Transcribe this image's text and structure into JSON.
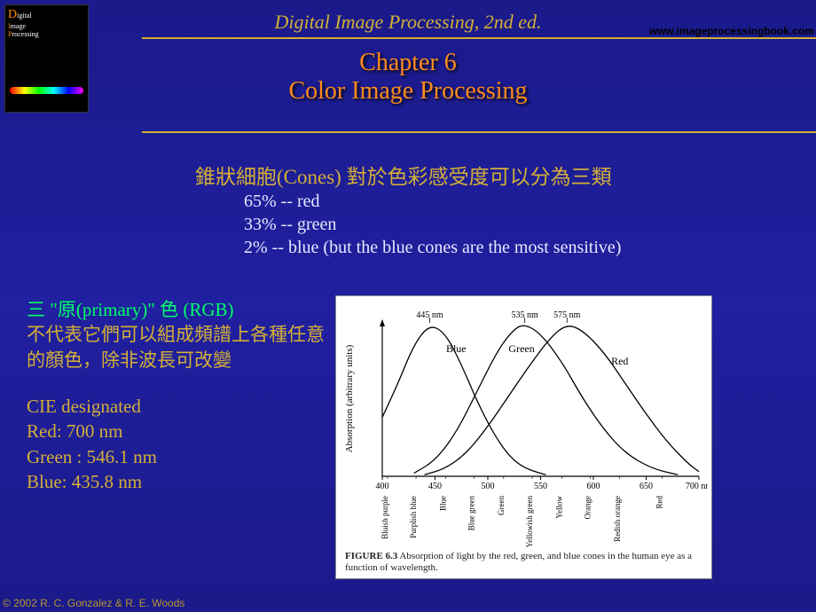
{
  "colors": {
    "gold": "#d4af37",
    "gold_dim": "#b8962e",
    "chapter": "#ff8c1a",
    "green": "#00ff66",
    "white": "#e8e8ff",
    "black": "#000000",
    "figure_bg": "#ffffff"
  },
  "header": {
    "title": "Digital Image Processing, 2nd ed.",
    "url": "www.imageprocessingbook.com"
  },
  "chapter": {
    "line1": "Chapter 6",
    "line2": "Color Image Processing"
  },
  "cones": {
    "heading": "錐狀細胞(Cones) 對於色彩感受度可以分為三類",
    "lines": [
      "65% -- red",
      "33% -- green",
      "2% -- blue (but the blue cones are the most sensitive)"
    ]
  },
  "primary_block": {
    "line1": "三   \"原(primary)\" 色 (RGB)",
    "line2": "不代表它們可以組成頻譜上各種任意的顏色，除非波長可改變"
  },
  "cie_block": {
    "title": "CIE designated",
    "red": "Red: 700 nm",
    "green": "Green : 546.1 nm",
    "blue": "Blue: 435.8 nm"
  },
  "figure": {
    "type": "line",
    "xlim": [
      400,
      700
    ],
    "xtick_step": 50,
    "xtick_labels_numeric": [
      "400",
      "450",
      "500",
      "550",
      "600",
      "650",
      "700 nm"
    ],
    "xtick_labels_rotated": [
      "Bluish purple",
      "Purplish blue",
      "Blue",
      "Blue green",
      "Green",
      "Yellowish green",
      "Yellow",
      "Orange",
      "Redish orange",
      "Red"
    ],
    "xtick_rotated_positions": [
      405,
      432,
      460,
      487,
      515,
      542,
      570,
      597,
      625,
      665
    ],
    "ylabel": "Absorption (arbitrary units)",
    "peaks": [
      {
        "label": "445 nm",
        "x": 445
      },
      {
        "label": "535 nm",
        "x": 535
      },
      {
        "label": "575 nm",
        "x": 575
      }
    ],
    "curve_labels": [
      {
        "text": "Blue",
        "x": 470,
        "y": 0.8
      },
      {
        "text": "Green",
        "x": 532,
        "y": 0.8
      },
      {
        "text": "Red",
        "x": 625,
        "y": 0.72
      }
    ],
    "series": [
      {
        "name": "blue",
        "color": "#000000",
        "points": [
          [
            400,
            0.38
          ],
          [
            415,
            0.6
          ],
          [
            430,
            0.85
          ],
          [
            445,
            0.98
          ],
          [
            460,
            0.92
          ],
          [
            475,
            0.72
          ],
          [
            490,
            0.48
          ],
          [
            505,
            0.28
          ],
          [
            520,
            0.13
          ],
          [
            535,
            0.05
          ],
          [
            555,
            0.01
          ]
        ]
      },
      {
        "name": "green",
        "color": "#000000",
        "points": [
          [
            430,
            0.02
          ],
          [
            450,
            0.1
          ],
          [
            470,
            0.28
          ],
          [
            490,
            0.55
          ],
          [
            510,
            0.82
          ],
          [
            525,
            0.95
          ],
          [
            535,
            0.98
          ],
          [
            550,
            0.92
          ],
          [
            570,
            0.74
          ],
          [
            590,
            0.5
          ],
          [
            610,
            0.3
          ],
          [
            630,
            0.15
          ],
          [
            655,
            0.05
          ],
          [
            680,
            0.01
          ]
        ]
      },
      {
        "name": "red",
        "color": "#000000",
        "points": [
          [
            440,
            0.01
          ],
          [
            460,
            0.05
          ],
          [
            480,
            0.15
          ],
          [
            500,
            0.32
          ],
          [
            520,
            0.52
          ],
          [
            540,
            0.72
          ],
          [
            560,
            0.9
          ],
          [
            575,
            0.98
          ],
          [
            590,
            0.94
          ],
          [
            610,
            0.8
          ],
          [
            630,
            0.6
          ],
          [
            650,
            0.4
          ],
          [
            670,
            0.22
          ],
          [
            690,
            0.08
          ],
          [
            700,
            0.03
          ]
        ]
      }
    ],
    "caption_bold": "FIGURE 6.3",
    "caption_rest": "  Absorption of light by the red, green, and blue cones in the human eye as a function of wavelength.",
    "line_width": 1.3,
    "axis_color": "#000000"
  },
  "copyright": "© 2002 R. C. Gonzalez & R. E. Woods"
}
